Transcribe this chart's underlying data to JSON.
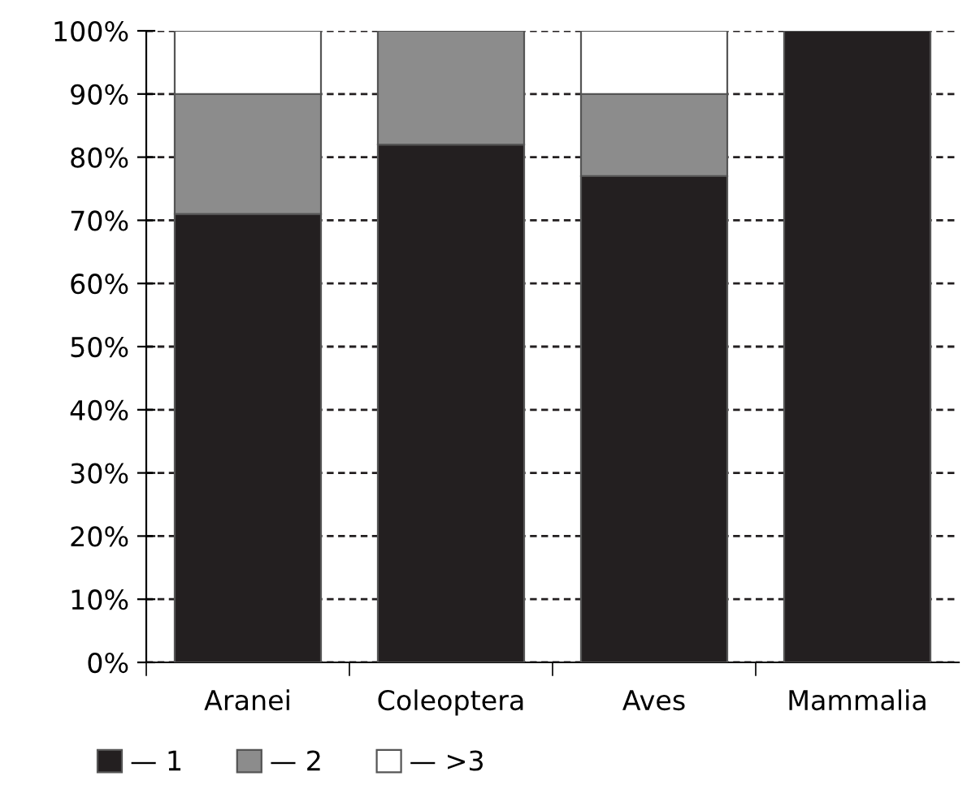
{
  "chart_data": {
    "type": "bar",
    "stacked": true,
    "categories": [
      "Aranei",
      "Coleoptera",
      "Aves",
      "Mammalia"
    ],
    "series": [
      {
        "name": "— 1",
        "color": "#231f20",
        "values": [
          71,
          82,
          77,
          100
        ]
      },
      {
        "name": "— 2",
        "color": "#8c8c8c",
        "values": [
          19,
          18,
          13,
          0
        ]
      },
      {
        "name": "— >3",
        "color": "#ffffff",
        "values": [
          10,
          0,
          10,
          0
        ]
      }
    ],
    "ylim": [
      0,
      100
    ],
    "yticks": [
      {
        "value": 0,
        "label": "0%"
      },
      {
        "value": 10,
        "label": "10%"
      },
      {
        "value": 20,
        "label": "20%"
      },
      {
        "value": 30,
        "label": "30%"
      },
      {
        "value": 40,
        "label": "40%"
      },
      {
        "value": 50,
        "label": "50%"
      },
      {
        "value": 60,
        "label": "60%"
      },
      {
        "value": 70,
        "label": "70%"
      },
      {
        "value": 80,
        "label": "80%"
      },
      {
        "value": 90,
        "label": "90%"
      },
      {
        "value": 100,
        "label": "100%"
      }
    ],
    "grid": "y",
    "legend": "bottom left"
  }
}
